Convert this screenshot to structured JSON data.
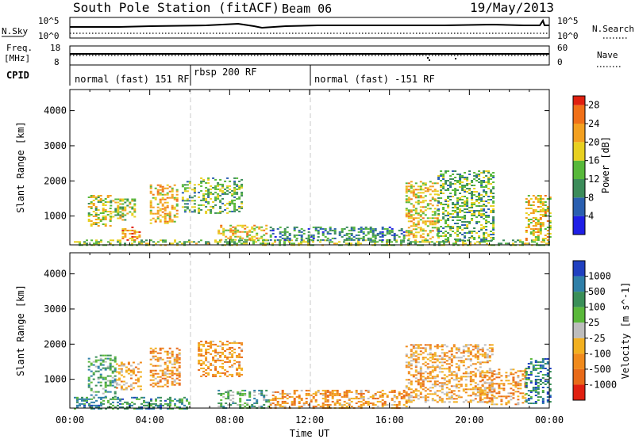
{
  "header": {
    "station": "South Pole Station (fitACF)",
    "beam": "Beam 06",
    "date": "19/May/2013"
  },
  "nsky_panel": {
    "left_label": "N.Sky",
    "right_label": "N.Search",
    "top_tick": "10^5",
    "bottom_tick": "10^0"
  },
  "freq_panel": {
    "left_label_line1": "Freq.",
    "left_label_line2": "[MHz]",
    "left_ticks": [
      "18",
      "8"
    ],
    "right_label": "Nave",
    "right_ticks": [
      "60",
      "0"
    ]
  },
  "cpid": {
    "label": "CPID",
    "segments": [
      {
        "label": "normal (fast) 151 RF",
        "start_hour": 0
      },
      {
        "label": "rbsp 200 RF",
        "start_hour": 6
      },
      {
        "label": "normal (fast) -151 RF",
        "start_hour": 12
      }
    ]
  },
  "x_axis": {
    "label": "Time UT",
    "ticks": [
      "00:00",
      "04:00",
      "08:00",
      "12:00",
      "16:00",
      "20:00",
      "00:00"
    ],
    "range_hours": [
      0,
      24
    ]
  },
  "chart_data": [
    {
      "type": "heatmap",
      "name": "power",
      "ylabel": "Slant Range [km]",
      "ylim": [
        180,
        4600
      ],
      "yticks": [
        1000,
        2000,
        3000,
        4000
      ],
      "colorbar_label": "Power [dB]",
      "colorbar_ticks": [
        4,
        8,
        12,
        16,
        20,
        24,
        28
      ],
      "colorbar_range": [
        0,
        30
      ],
      "colorbar_colors": [
        "#1f1fe6",
        "#2a5fb0",
        "#3c8c5a",
        "#57b83a",
        "#e8d020",
        "#f3a020",
        "#f07018",
        "#e02010"
      ],
      "scatter_regions": [
        {
          "t0": 0.2,
          "t1": 24,
          "r0": 180,
          "r1": 330,
          "level": 0.45
        },
        {
          "t0": 0.9,
          "t1": 2.0,
          "r0": 700,
          "r1": 1600,
          "level": 0.55
        },
        {
          "t0": 2.0,
          "t1": 3.2,
          "r0": 900,
          "r1": 1500,
          "level": 0.5
        },
        {
          "t0": 2.6,
          "t1": 3.5,
          "r0": 330,
          "r1": 700,
          "level": 0.7
        },
        {
          "t0": 4.0,
          "t1": 5.4,
          "r0": 800,
          "r1": 1900,
          "level": 0.65
        },
        {
          "t0": 5.6,
          "t1": 6.2,
          "r0": 1100,
          "r1": 2000,
          "level": 0.4
        },
        {
          "t0": 6.4,
          "t1": 8.6,
          "r0": 1100,
          "r1": 2100,
          "level": 0.4
        },
        {
          "t0": 7.4,
          "t1": 9.9,
          "r0": 330,
          "r1": 750,
          "level": 0.6
        },
        {
          "t0": 10.0,
          "t1": 16.8,
          "r0": 330,
          "r1": 700,
          "level": 0.3
        },
        {
          "t0": 16.8,
          "t1": 18.4,
          "r0": 350,
          "r1": 2000,
          "level": 0.6
        },
        {
          "t0": 18.4,
          "t1": 21.2,
          "r0": 300,
          "r1": 2300,
          "level": 0.4
        },
        {
          "t0": 22.8,
          "t1": 24.0,
          "r0": 300,
          "r1": 1600,
          "level": 0.6
        }
      ]
    },
    {
      "type": "heatmap",
      "name": "velocity",
      "ylabel": "Slant Range [km]",
      "ylim": [
        180,
        4600
      ],
      "yticks": [
        1000,
        2000,
        3000,
        4000
      ],
      "colorbar_label": "Velocity [m s^-1]",
      "colorbar_ticks": [
        "1000",
        "500",
        "100",
        "25",
        "-25",
        "-100",
        "-500",
        "-1000"
      ],
      "colorbar_colors": [
        "#2040c0",
        "#2f7fa8",
        "#3a8f58",
        "#5ab83a",
        "#bdbdbd",
        "#f2b020",
        "#f08a1c",
        "#e86a18",
        "#e02010"
      ],
      "scatter_regions": [
        {
          "t0": 0.2,
          "t1": 6.0,
          "r0": 180,
          "r1": 500,
          "level": 0.25
        },
        {
          "t0": 0.9,
          "t1": 2.3,
          "r0": 500,
          "r1": 1700,
          "level": 0.3
        },
        {
          "t0": 2.3,
          "t1": 3.5,
          "r0": 700,
          "r1": 1500,
          "level": 0.65
        },
        {
          "t0": 4.0,
          "t1": 5.5,
          "r0": 800,
          "r1": 1900,
          "level": 0.7
        },
        {
          "t0": 6.4,
          "t1": 8.6,
          "r0": 1100,
          "r1": 2100,
          "level": 0.7
        },
        {
          "t0": 7.4,
          "t1": 10.0,
          "r0": 180,
          "r1": 700,
          "level": 0.35
        },
        {
          "t0": 10.0,
          "t1": 16.8,
          "r0": 180,
          "r1": 700,
          "level": 0.7
        },
        {
          "t0": 16.8,
          "t1": 21.2,
          "r0": 350,
          "r1": 2000,
          "level": 0.65
        },
        {
          "t0": 20.6,
          "t1": 22.8,
          "r0": 300,
          "r1": 1300,
          "level": 0.7
        },
        {
          "t0": 22.8,
          "t1": 24.0,
          "r0": 300,
          "r1": 1600,
          "level": 0.2
        }
      ]
    }
  ]
}
